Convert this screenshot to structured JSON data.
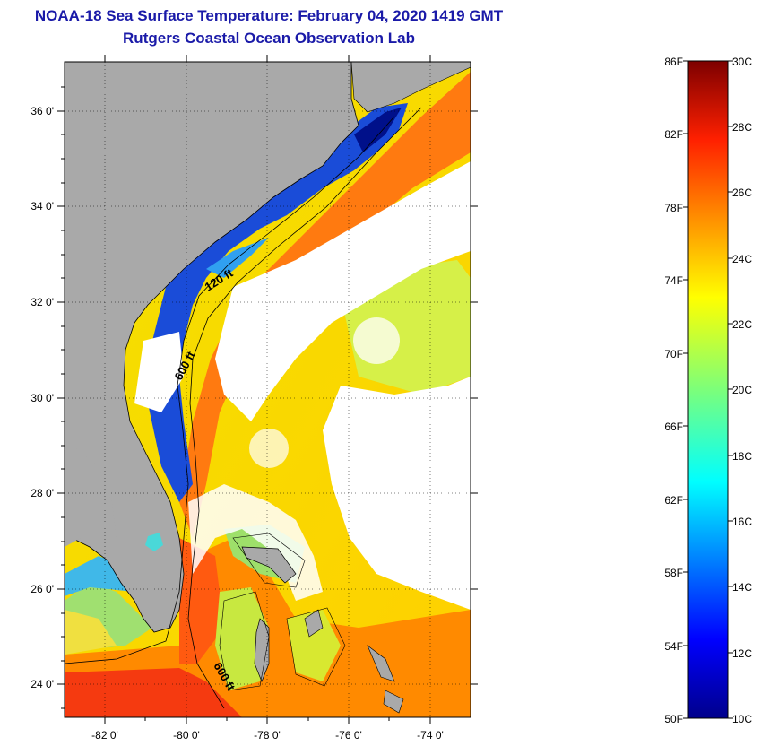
{
  "header": {
    "title": "NOAA-18 Sea Surface Temperature:  February 04, 2020 1419 GMT",
    "subtitle": "Rutgers Coastal Ocean Observation Lab"
  },
  "map": {
    "lat_range": [
      23,
      37.2
    ],
    "lon_range": [
      -83,
      -73
    ],
    "lat_tick_labels": [
      "36 0'",
      "34 0'",
      "32 0'",
      "30 0'",
      "28 0'",
      "26 0'",
      "24 0'"
    ],
    "lon_tick_labels": [
      "-82 0'",
      "-80 0'",
      "-78 0'",
      "-76 0'",
      "-74 0'"
    ],
    "contour_labels": [
      "120 ft",
      "600 ft",
      "600 ft"
    ],
    "land_color": "#a9a9a9",
    "cloud_color": "#ffffff",
    "gridlines": "dotted"
  },
  "colorbar": {
    "fahrenheit_labels": [
      "86F",
      "82F",
      "78F",
      "74F",
      "70F",
      "66F",
      "62F",
      "58F",
      "54F",
      "50F"
    ],
    "celsius_labels": [
      "30C",
      "28C",
      "26C",
      "24C",
      "22C",
      "20C",
      "18C",
      "16C",
      "14C",
      "12C",
      "10C"
    ],
    "range_c": [
      10,
      30
    ],
    "colormap": "jet"
  }
}
